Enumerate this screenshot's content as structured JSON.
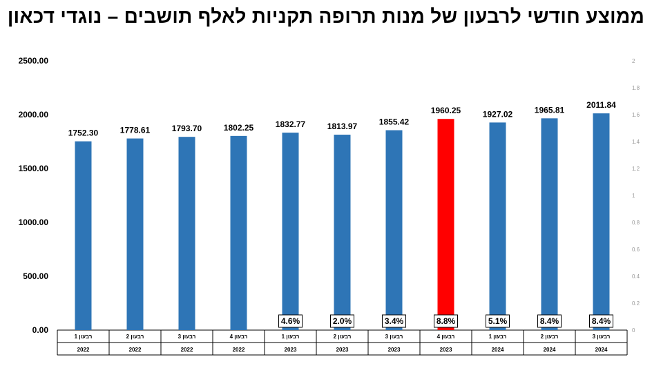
{
  "title": "ממוצע חודשי לרבעון של מנות תרופה תקניות לאלף תושבים – נוגדי דכאון",
  "chart_data": {
    "type": "bar",
    "title": "ממוצע חודשי לרבעון של מנות תרופה תקניות לאלף תושבים – נוגדי דכאון",
    "categories": [
      {
        "quarter": "רבעון 1",
        "year": "2022"
      },
      {
        "quarter": "רבעון 2",
        "year": "2022"
      },
      {
        "quarter": "רבעון 3",
        "year": "2022"
      },
      {
        "quarter": "רבעון 4",
        "year": "2022"
      },
      {
        "quarter": "רבעון 1",
        "year": "2023"
      },
      {
        "quarter": "רבעון 2",
        "year": "2023"
      },
      {
        "quarter": "רבעון 3",
        "year": "2023"
      },
      {
        "quarter": "רבעון 4",
        "year": "2023"
      },
      {
        "quarter": "רבעון 1",
        "year": "2024"
      },
      {
        "quarter": "רבעון 2",
        "year": "2024"
      },
      {
        "quarter": "רבעון 3",
        "year": "2024"
      }
    ],
    "values": [
      1752.3,
      1778.61,
      1793.7,
      1802.25,
      1832.77,
      1813.97,
      1855.42,
      1960.25,
      1927.02,
      1965.81,
      2011.84
    ],
    "value_labels": [
      "1752.30",
      "1778.61",
      "1793.70",
      "1802.25",
      "1832.77",
      "1813.97",
      "1855.42",
      "1960.25",
      "1927.02",
      "1965.81",
      "2011.84"
    ],
    "change_labels": [
      "",
      "",
      "",
      "",
      "4.6%",
      "2.0%",
      "3.4%",
      "8.8%",
      "5.1%",
      "8.4%",
      "8.4%"
    ],
    "highlight_index": 7,
    "colors": {
      "bar": "#2e75b6",
      "highlight": "#ff0000"
    },
    "ylim": [
      0,
      2500
    ],
    "yticks": [
      "0.00",
      "500.00",
      "1000.00",
      "1500.00",
      "2000.00",
      "2500.00"
    ],
    "y2lim": [
      0,
      2
    ],
    "y2ticks": [
      "0",
      "0.2",
      "0.4",
      "0.6",
      "0.8",
      "1",
      "1.2",
      "1.4",
      "1.6",
      "1.8",
      "2"
    ],
    "grid": false,
    "legend": "none"
  }
}
